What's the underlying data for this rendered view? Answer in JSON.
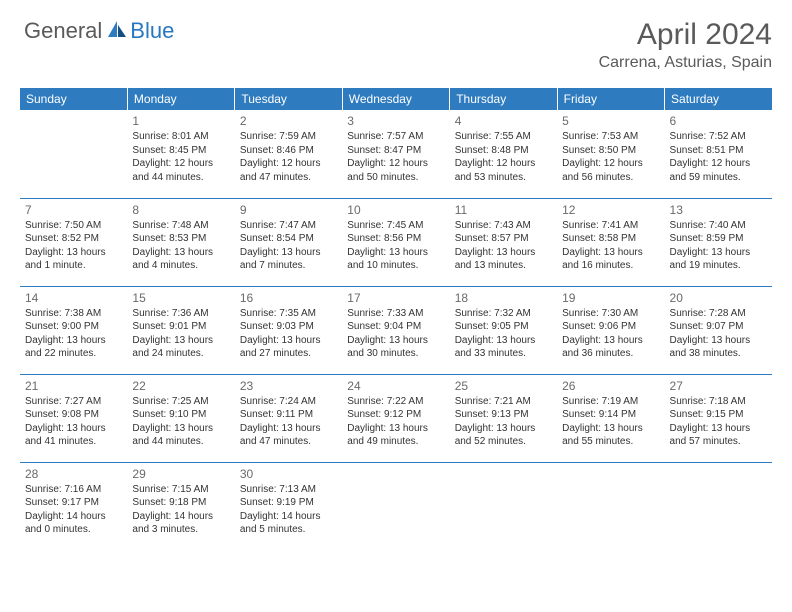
{
  "brand": {
    "part1": "General",
    "part2": "Blue"
  },
  "title": "April 2024",
  "location": "Carrena, Asturias, Spain",
  "colors": {
    "header_bg": "#2e7bc0",
    "header_text": "#ffffff",
    "border": "#2e7bc0",
    "brand_gray": "#5a5a5a",
    "brand_blue": "#2878c0",
    "cell_text": "#333333",
    "daynum": "#6a6a6a"
  },
  "day_headers": [
    "Sunday",
    "Monday",
    "Tuesday",
    "Wednesday",
    "Thursday",
    "Friday",
    "Saturday"
  ],
  "weeks": [
    [
      null,
      {
        "n": "1",
        "sr": "Sunrise: 8:01 AM",
        "ss": "Sunset: 8:45 PM",
        "d1": "Daylight: 12 hours",
        "d2": "and 44 minutes."
      },
      {
        "n": "2",
        "sr": "Sunrise: 7:59 AM",
        "ss": "Sunset: 8:46 PM",
        "d1": "Daylight: 12 hours",
        "d2": "and 47 minutes."
      },
      {
        "n": "3",
        "sr": "Sunrise: 7:57 AM",
        "ss": "Sunset: 8:47 PM",
        "d1": "Daylight: 12 hours",
        "d2": "and 50 minutes."
      },
      {
        "n": "4",
        "sr": "Sunrise: 7:55 AM",
        "ss": "Sunset: 8:48 PM",
        "d1": "Daylight: 12 hours",
        "d2": "and 53 minutes."
      },
      {
        "n": "5",
        "sr": "Sunrise: 7:53 AM",
        "ss": "Sunset: 8:50 PM",
        "d1": "Daylight: 12 hours",
        "d2": "and 56 minutes."
      },
      {
        "n": "6",
        "sr": "Sunrise: 7:52 AM",
        "ss": "Sunset: 8:51 PM",
        "d1": "Daylight: 12 hours",
        "d2": "and 59 minutes."
      }
    ],
    [
      {
        "n": "7",
        "sr": "Sunrise: 7:50 AM",
        "ss": "Sunset: 8:52 PM",
        "d1": "Daylight: 13 hours",
        "d2": "and 1 minute."
      },
      {
        "n": "8",
        "sr": "Sunrise: 7:48 AM",
        "ss": "Sunset: 8:53 PM",
        "d1": "Daylight: 13 hours",
        "d2": "and 4 minutes."
      },
      {
        "n": "9",
        "sr": "Sunrise: 7:47 AM",
        "ss": "Sunset: 8:54 PM",
        "d1": "Daylight: 13 hours",
        "d2": "and 7 minutes."
      },
      {
        "n": "10",
        "sr": "Sunrise: 7:45 AM",
        "ss": "Sunset: 8:56 PM",
        "d1": "Daylight: 13 hours",
        "d2": "and 10 minutes."
      },
      {
        "n": "11",
        "sr": "Sunrise: 7:43 AM",
        "ss": "Sunset: 8:57 PM",
        "d1": "Daylight: 13 hours",
        "d2": "and 13 minutes."
      },
      {
        "n": "12",
        "sr": "Sunrise: 7:41 AM",
        "ss": "Sunset: 8:58 PM",
        "d1": "Daylight: 13 hours",
        "d2": "and 16 minutes."
      },
      {
        "n": "13",
        "sr": "Sunrise: 7:40 AM",
        "ss": "Sunset: 8:59 PM",
        "d1": "Daylight: 13 hours",
        "d2": "and 19 minutes."
      }
    ],
    [
      {
        "n": "14",
        "sr": "Sunrise: 7:38 AM",
        "ss": "Sunset: 9:00 PM",
        "d1": "Daylight: 13 hours",
        "d2": "and 22 minutes."
      },
      {
        "n": "15",
        "sr": "Sunrise: 7:36 AM",
        "ss": "Sunset: 9:01 PM",
        "d1": "Daylight: 13 hours",
        "d2": "and 24 minutes."
      },
      {
        "n": "16",
        "sr": "Sunrise: 7:35 AM",
        "ss": "Sunset: 9:03 PM",
        "d1": "Daylight: 13 hours",
        "d2": "and 27 minutes."
      },
      {
        "n": "17",
        "sr": "Sunrise: 7:33 AM",
        "ss": "Sunset: 9:04 PM",
        "d1": "Daylight: 13 hours",
        "d2": "and 30 minutes."
      },
      {
        "n": "18",
        "sr": "Sunrise: 7:32 AM",
        "ss": "Sunset: 9:05 PM",
        "d1": "Daylight: 13 hours",
        "d2": "and 33 minutes."
      },
      {
        "n": "19",
        "sr": "Sunrise: 7:30 AM",
        "ss": "Sunset: 9:06 PM",
        "d1": "Daylight: 13 hours",
        "d2": "and 36 minutes."
      },
      {
        "n": "20",
        "sr": "Sunrise: 7:28 AM",
        "ss": "Sunset: 9:07 PM",
        "d1": "Daylight: 13 hours",
        "d2": "and 38 minutes."
      }
    ],
    [
      {
        "n": "21",
        "sr": "Sunrise: 7:27 AM",
        "ss": "Sunset: 9:08 PM",
        "d1": "Daylight: 13 hours",
        "d2": "and 41 minutes."
      },
      {
        "n": "22",
        "sr": "Sunrise: 7:25 AM",
        "ss": "Sunset: 9:10 PM",
        "d1": "Daylight: 13 hours",
        "d2": "and 44 minutes."
      },
      {
        "n": "23",
        "sr": "Sunrise: 7:24 AM",
        "ss": "Sunset: 9:11 PM",
        "d1": "Daylight: 13 hours",
        "d2": "and 47 minutes."
      },
      {
        "n": "24",
        "sr": "Sunrise: 7:22 AM",
        "ss": "Sunset: 9:12 PM",
        "d1": "Daylight: 13 hours",
        "d2": "and 49 minutes."
      },
      {
        "n": "25",
        "sr": "Sunrise: 7:21 AM",
        "ss": "Sunset: 9:13 PM",
        "d1": "Daylight: 13 hours",
        "d2": "and 52 minutes."
      },
      {
        "n": "26",
        "sr": "Sunrise: 7:19 AM",
        "ss": "Sunset: 9:14 PM",
        "d1": "Daylight: 13 hours",
        "d2": "and 55 minutes."
      },
      {
        "n": "27",
        "sr": "Sunrise: 7:18 AM",
        "ss": "Sunset: 9:15 PM",
        "d1": "Daylight: 13 hours",
        "d2": "and 57 minutes."
      }
    ],
    [
      {
        "n": "28",
        "sr": "Sunrise: 7:16 AM",
        "ss": "Sunset: 9:17 PM",
        "d1": "Daylight: 14 hours",
        "d2": "and 0 minutes."
      },
      {
        "n": "29",
        "sr": "Sunrise: 7:15 AM",
        "ss": "Sunset: 9:18 PM",
        "d1": "Daylight: 14 hours",
        "d2": "and 3 minutes."
      },
      {
        "n": "30",
        "sr": "Sunrise: 7:13 AM",
        "ss": "Sunset: 9:19 PM",
        "d1": "Daylight: 14 hours",
        "d2": "and 5 minutes."
      },
      null,
      null,
      null,
      null
    ]
  ]
}
